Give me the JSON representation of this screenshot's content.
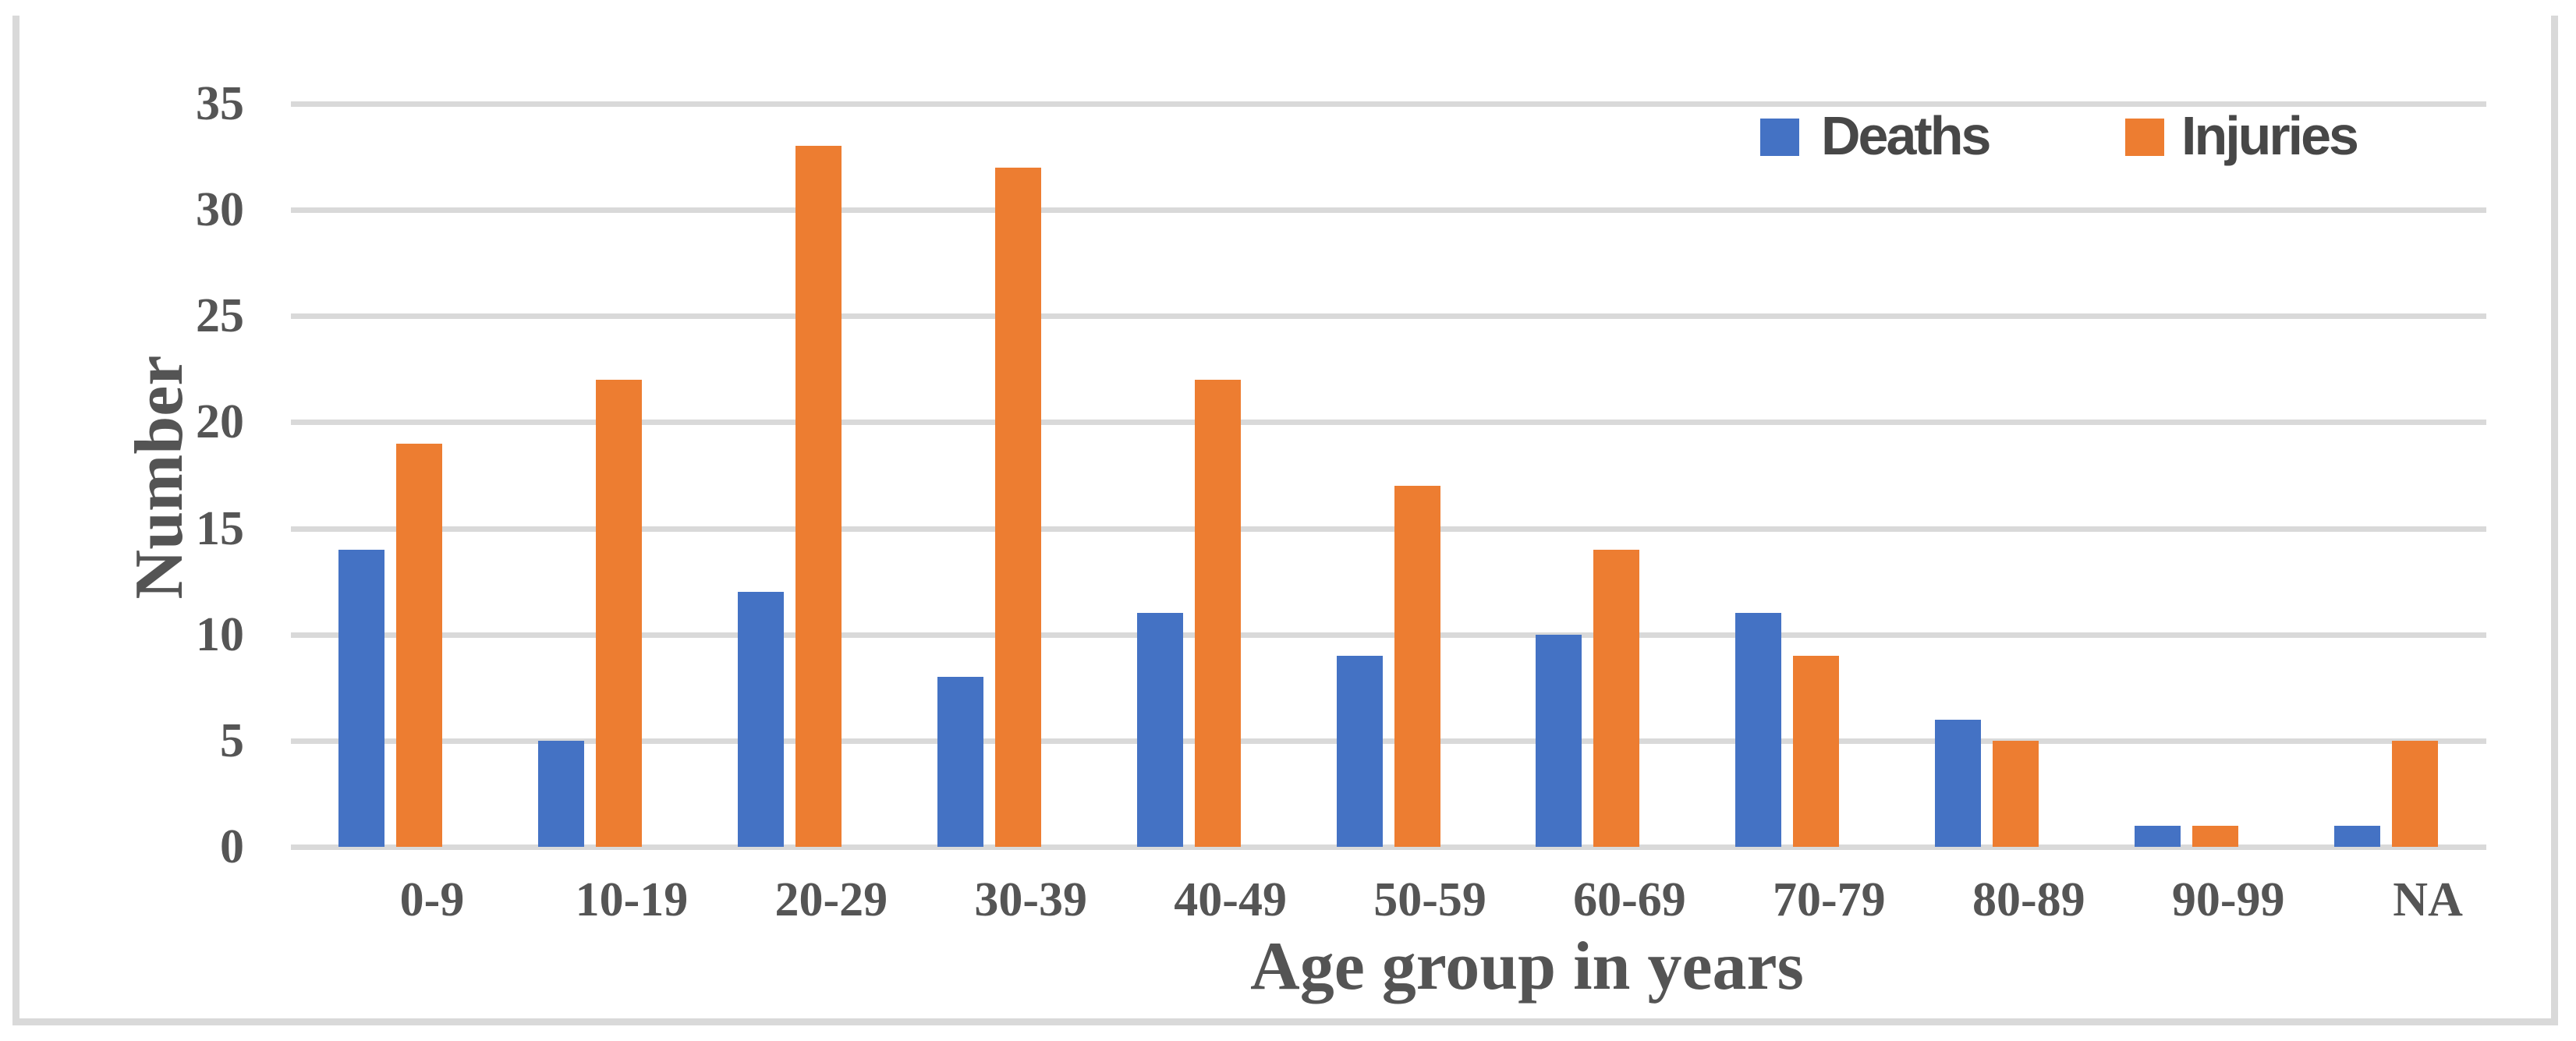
{
  "chart_data": {
    "type": "bar",
    "categories": [
      "0-9",
      "10-19",
      "20-29",
      "30-39",
      "40-49",
      "50-59",
      "60-69",
      "70-79",
      "80-89",
      "90-99",
      "NA"
    ],
    "series": [
      {
        "name": "Deaths",
        "color": "#4472C4",
        "values": [
          14,
          5,
          12,
          8,
          11,
          9,
          10,
          11,
          6,
          1,
          1
        ]
      },
      {
        "name": "Injuries",
        "color": "#ED7D31",
        "values": [
          19,
          22,
          33,
          32,
          22,
          17,
          14,
          9,
          5,
          1,
          5
        ]
      }
    ],
    "title": "",
    "xlabel": "Age group in years",
    "ylabel": "Number",
    "ylim": [
      0,
      35
    ],
    "ytick_step": 5,
    "yticks": [
      0,
      5,
      10,
      15,
      20,
      25,
      30,
      35
    ],
    "grid": true,
    "legend_position": "top-right"
  },
  "colors": {
    "gridline": "#D9D9D9",
    "figure_border": "#D9D9D9",
    "axis_text": "#555555",
    "legend_text": "#474747"
  }
}
